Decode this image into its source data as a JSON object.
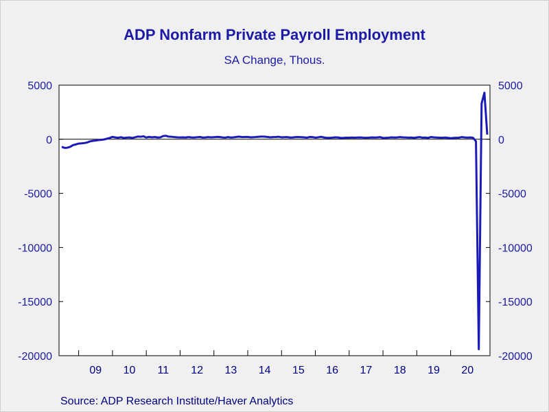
{
  "chart_data": {
    "type": "line",
    "title": "ADP Nonfarm Private Payroll Employment",
    "subtitle": "SA Change, Thous.",
    "source": "Source:  ADP Research Institute/Haver Analytics",
    "xlabel": "",
    "ylabel": "",
    "ylim": [
      -20000,
      5000
    ],
    "yticks": [
      "5000",
      "0",
      "-5000",
      "-10000",
      "-15000",
      "-20000"
    ],
    "xticks": [
      "09",
      "10",
      "11",
      "12",
      "13",
      "14",
      "15",
      "16",
      "17",
      "18",
      "19",
      "20"
    ],
    "grid": false,
    "zero_line": true,
    "line_color": "#1a1ab8",
    "series": [
      {
        "values": [
          -700,
          -800,
          -780,
          -700,
          -540,
          -480,
          -400,
          -380,
          -350,
          -300,
          -200,
          -150,
          -120,
          -80,
          -50,
          -20,
          50,
          120,
          220,
          170,
          140,
          190,
          120,
          150,
          170,
          120,
          180,
          250,
          230,
          270,
          160,
          220,
          180,
          210,
          160,
          180,
          300,
          320,
          240,
          230,
          200,
          180,
          170,
          180,
          160,
          200,
          170,
          160,
          190,
          210,
          160,
          170,
          200,
          180,
          190,
          220,
          210,
          170,
          150,
          200,
          160,
          180,
          220,
          240,
          200,
          210,
          220,
          180,
          190,
          210,
          230,
          250,
          240,
          210,
          180,
          200,
          210,
          230,
          180,
          190,
          200,
          160,
          170,
          200,
          210,
          190,
          180,
          150,
          210,
          200,
          150,
          180,
          230,
          170,
          130,
          130,
          150,
          180,
          170,
          120,
          130,
          150,
          150,
          160,
          150,
          160,
          170,
          150,
          140,
          150,
          170,
          160,
          170,
          200,
          120,
          130,
          150,
          180,
          160,
          170,
          200,
          180,
          170,
          150,
          160,
          130,
          170,
          200,
          150,
          160,
          120,
          210,
          180,
          160,
          150,
          140,
          160,
          130,
          100,
          120,
          140,
          150,
          200,
          170,
          150,
          170,
          130,
          -200,
          -19400,
          3300,
          4300,
          430
        ]
      }
    ]
  }
}
